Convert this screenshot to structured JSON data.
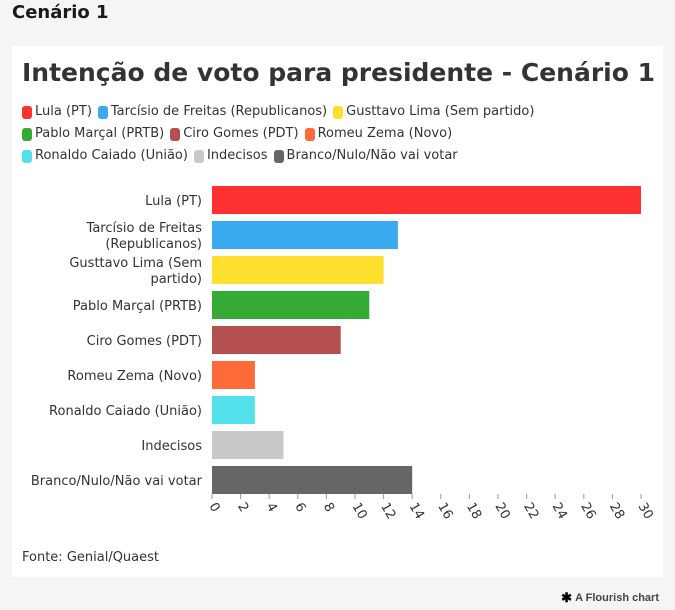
{
  "page": {
    "heading": "Cenário 1",
    "credit": "A Flourish chart",
    "credit_icon": "flourish-asterisk-icon"
  },
  "chart_data": {
    "type": "bar",
    "orientation": "horizontal",
    "title": "Intenção de voto para presidente - Cenário 1",
    "source": "Fonte: Genial/Quaest",
    "xlabel": "",
    "ylabel": "",
    "xlim": [
      0,
      30
    ],
    "xticks": [
      0,
      2,
      4,
      6,
      8,
      10,
      12,
      14,
      16,
      18,
      20,
      22,
      24,
      26,
      28,
      30
    ],
    "grid": false,
    "legend_placement": "top",
    "categories": [
      "Lula (PT)",
      "Tarcísio de Freitas (Republicanos)",
      "Gusttavo Lima (Sem partido)",
      "Pablo Marçal (PRTB)",
      "Ciro Gomes (PDT)",
      "Romeu Zema (Novo)",
      "Ronaldo Caiado (União)",
      "Indecisos",
      "Branco/Nulo/Não vai votar"
    ],
    "category_label_lines": [
      [
        "Lula (PT)"
      ],
      [
        "Tarcísio de Freitas",
        "(Republicanos)"
      ],
      [
        "Gusttavo Lima (Sem",
        "partido)"
      ],
      [
        "Pablo Marçal (PRTB)"
      ],
      [
        "Ciro Gomes (PDT)"
      ],
      [
        "Romeu Zema (Novo)"
      ],
      [
        "Ronaldo Caiado (União)"
      ],
      [
        "Indecisos"
      ],
      [
        "Branco/Nulo/Não vai votar"
      ]
    ],
    "values": [
      30,
      13,
      12,
      11,
      9,
      3,
      3,
      5,
      14
    ],
    "colors": [
      "#ff3030",
      "#3aaaf0",
      "#ffdf2e",
      "#35aa35",
      "#b55050",
      "#ff6a38",
      "#52e1ea",
      "#c8c8c8",
      "#666666"
    ],
    "legend_rows": [
      [
        0,
        1,
        2
      ],
      [
        3,
        4,
        5
      ],
      [
        6,
        7,
        8
      ]
    ]
  }
}
